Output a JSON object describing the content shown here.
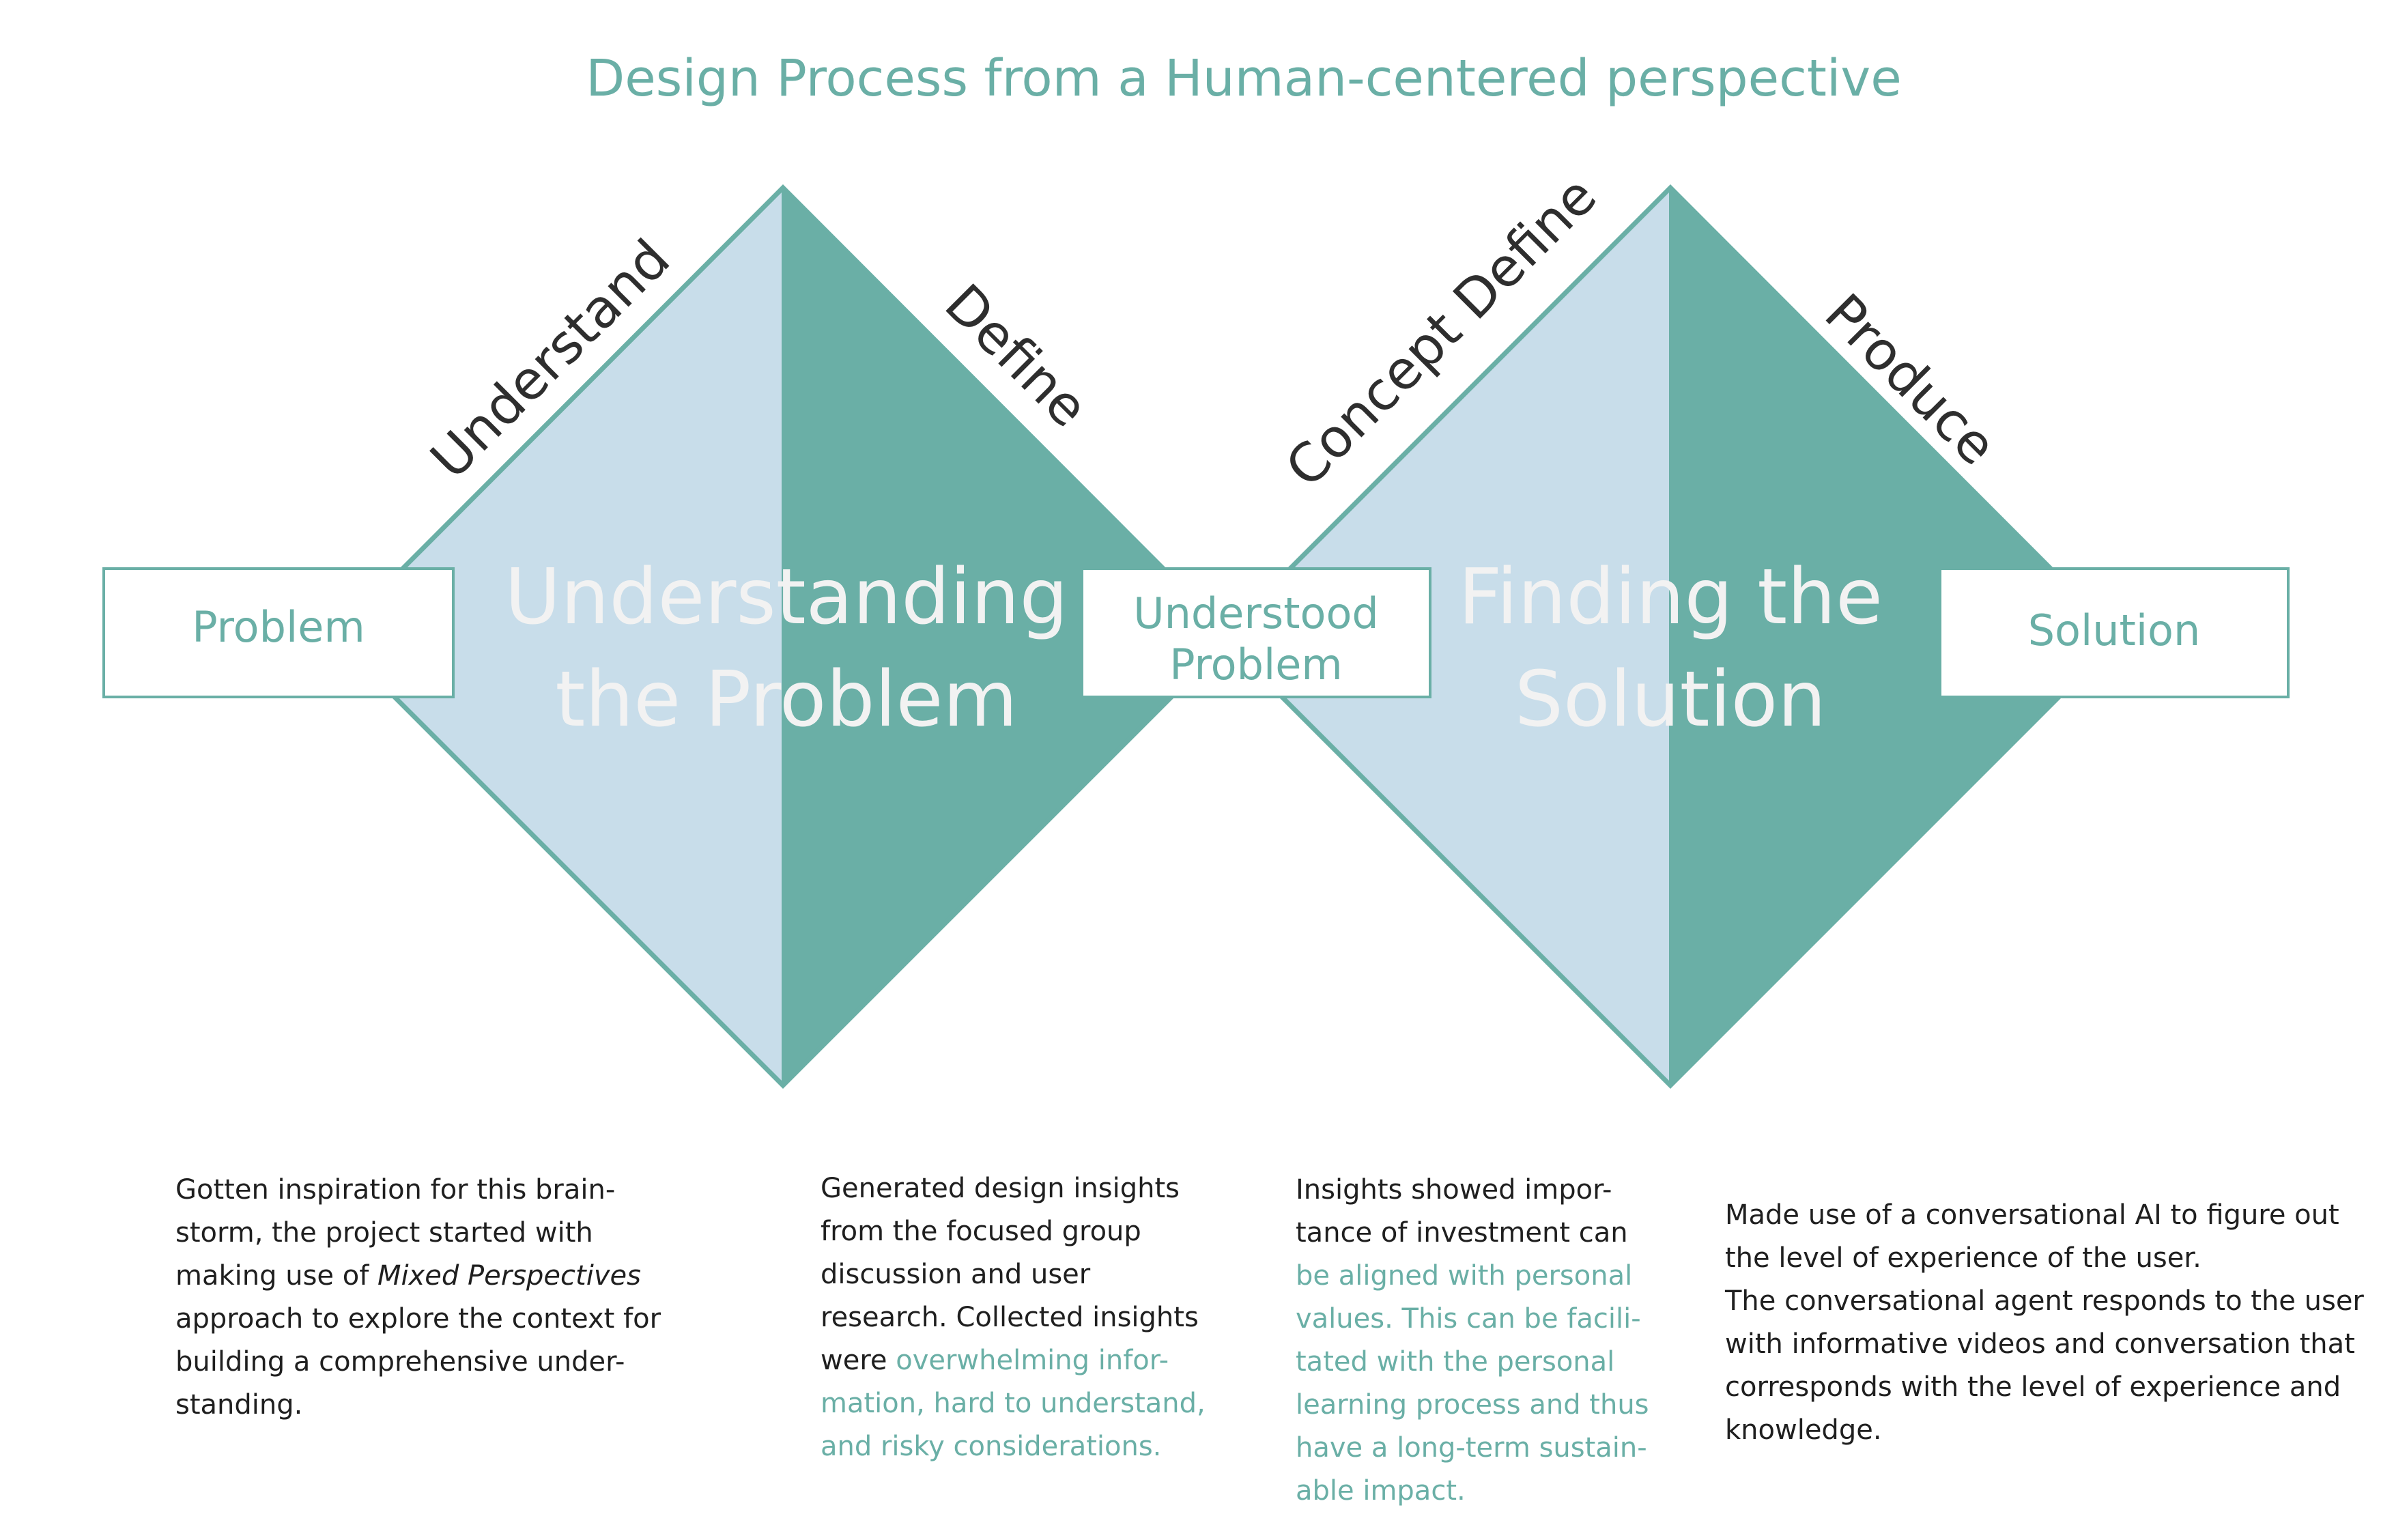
{
  "title": "Design Process from a Human-centered perspective",
  "phases": {
    "understand": "Understand",
    "define": "Define",
    "concept_define": "Concept Define",
    "produce": "Produce"
  },
  "diamonds": {
    "left": {
      "line1": "Understanding",
      "line2": "the Problem"
    },
    "right": {
      "line1": "Finding the",
      "line2": "Solution"
    }
  },
  "boxes": {
    "problem": "Problem",
    "understood_line1": "Understood",
    "understood_line2": "Problem",
    "solution": "Solution"
  },
  "descriptions": {
    "col1": {
      "l1": "Gotten inspiration for this brain-",
      "l2": "storm, the project started with",
      "l3_pre": "making use of ",
      "l3_em": "Mixed Perspectives",
      "l4": "approach to explore the context for",
      "l5": "building a comprehensive under-",
      "l6": "standing."
    },
    "col2": {
      "l1": "Generated design insights",
      "l2": "from the focused group",
      "l3": "discussion and user",
      "l4": "research. Collected insights",
      "l5_pre": "were ",
      "l5_hl": "overwhelming infor-",
      "l6": "mation, hard to understand,",
      "l7": "and risky considerations."
    },
    "col3": {
      "l1": "Insights showed impor-",
      "l2": "tance of investment can",
      "l3": "be aligned with personal",
      "l4": "values. This can be facili-",
      "l5": "tated with the personal",
      "l6": "learning process and thus",
      "l7": "have a long-term sustain-",
      "l8": "able impact."
    },
    "col4": {
      "l1": "Made use of a conversational AI to figure out",
      "l2": "the level of experience of the user.",
      "l3": "The conversational agent responds to the user",
      "l4": "with informative videos and conversation that",
      "l5": "corresponds with the level of experience and",
      "l6": "knowledge."
    }
  },
  "colors": {
    "accent": "#6aafa6",
    "light_blue": "#c8ddea",
    "text_dark": "#1f1f1f"
  }
}
